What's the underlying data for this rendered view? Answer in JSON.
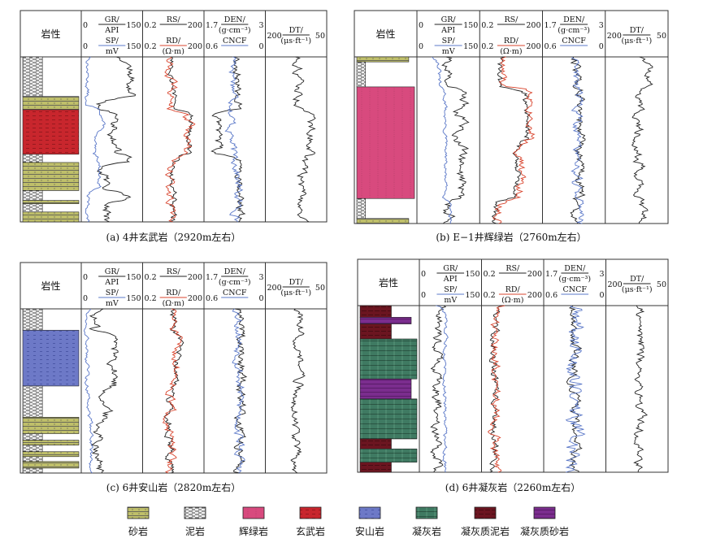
{
  "header": {
    "lithology": "岩性",
    "gr_label": "GR/",
    "gr_unit": "API",
    "sp_label": "SP/",
    "sp_unit": "mV",
    "rs_label": "RS/",
    "rd_label": "RD/",
    "res_unit": "(Ω·m)",
    "den_label": "DEN/",
    "den_unit": "(g·cm⁻³)",
    "cncf_label": "CNCF",
    "dt_label": "DT/",
    "dt_unit": "(μs·ft⁻¹)",
    "gr_min": "0",
    "gr_max": "150",
    "sp_min": "0",
    "sp_max": "150",
    "rs_min": "0.2",
    "rs_max": "200",
    "rd_min": "0.2",
    "rd_max": "200",
    "den_min": "1.7",
    "den_max": "3",
    "cncf_min": "0.6",
    "cncf_max": "0",
    "dt_min": "200",
    "dt_max": "50"
  },
  "panels": [
    {
      "caption": "(a) 4井玄武岩（2920m左右）"
    },
    {
      "caption": "(b) E−1井辉绿岩（2760m左右）"
    },
    {
      "caption": "(c) 6井安山岩（2820m左右）"
    },
    {
      "caption": "(d) 6井凝灰岩（2260m左右）"
    }
  ],
  "legend": [
    {
      "label": "砂岩",
      "color": "#bfbf6a"
    },
    {
      "label": "泥岩",
      "color": "#e6e6e6"
    },
    {
      "label": "辉绿岩",
      "color": "#d84a7e"
    },
    {
      "label": "玄武岩",
      "color": "#c8262d"
    },
    {
      "label": "安山岩",
      "color": "#6d79c7"
    },
    {
      "label": "凝灰岩",
      "color": "#3f7a62"
    },
    {
      "label": "凝灰质泥岩",
      "color": "#6b1520"
    },
    {
      "label": "凝灰质砂岩",
      "color": "#7b2d8e"
    }
  ],
  "colors": {
    "gr": "#222222",
    "sp": "#5b78c8",
    "rs": "#222222",
    "rd": "#d9452e",
    "den": "#222222",
    "cncf": "#5b78c8",
    "dt": "#222222"
  }
}
